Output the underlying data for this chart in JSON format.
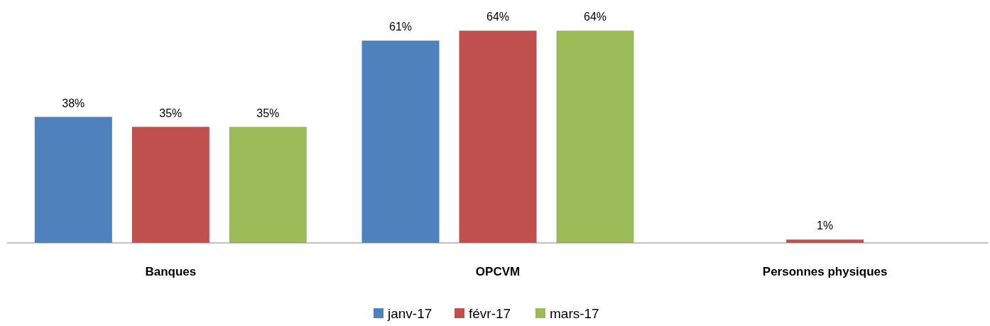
{
  "chart_data": {
    "type": "bar",
    "categories": [
      "Banques",
      "OPCVM",
      "Personnes physiques"
    ],
    "series": [
      {
        "name": "janv-17",
        "color": "#4f81bd",
        "values": [
          38,
          61,
          null
        ],
        "value_labels": [
          "38%",
          "61%",
          null
        ]
      },
      {
        "name": "févr-17",
        "color": "#c0504d",
        "values": [
          35,
          64,
          1
        ],
        "value_labels": [
          "35%",
          "64%",
          "1%"
        ]
      },
      {
        "name": "mars-17",
        "color": "#9bbb59",
        "values": [
          35,
          64,
          null
        ],
        "value_labels": [
          "35%",
          "64%",
          null
        ]
      }
    ],
    "legend": "bottom"
  }
}
